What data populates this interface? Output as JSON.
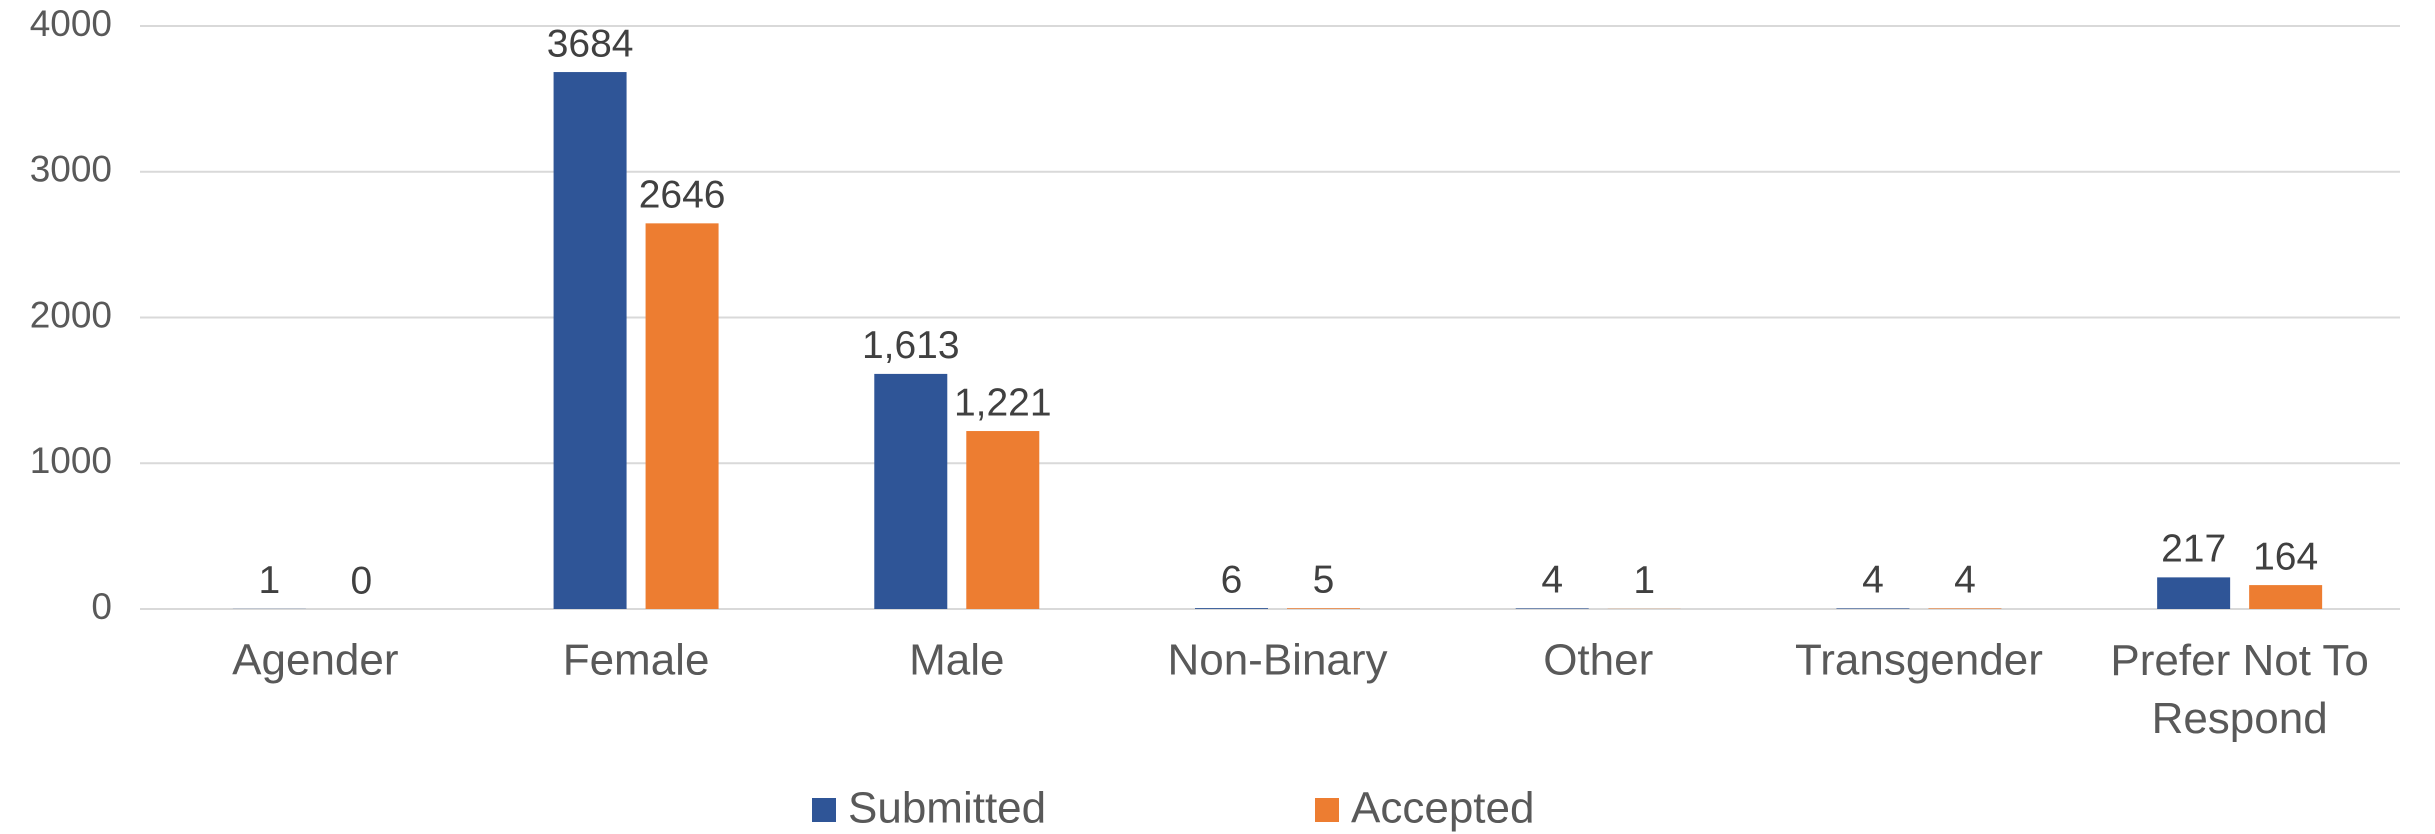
{
  "chart_data": {
    "type": "bar",
    "categories": [
      "Agender",
      "Female",
      "Male",
      "Non-Binary",
      "Other",
      "Transgender",
      "Prefer Not To Respond"
    ],
    "series": [
      {
        "name": "Submitted",
        "color": "#2f5597",
        "values": [
          1,
          3684,
          1613,
          6,
          4,
          4,
          217
        ],
        "value_labels": [
          "1",
          "3684",
          "1,613",
          "6",
          "4",
          "4",
          "217"
        ]
      },
      {
        "name": "Accepted",
        "color": "#ed7d31",
        "values": [
          0,
          2646,
          1221,
          5,
          1,
          4,
          164
        ],
        "value_labels": [
          "0",
          "2646",
          "1,221",
          "5",
          "1",
          "4",
          "164"
        ]
      }
    ],
    "ylim": [
      0,
      4000
    ],
    "yticks": [
      0,
      1000,
      2000,
      3000,
      4000
    ],
    "grid": true,
    "legend": "bottom"
  }
}
